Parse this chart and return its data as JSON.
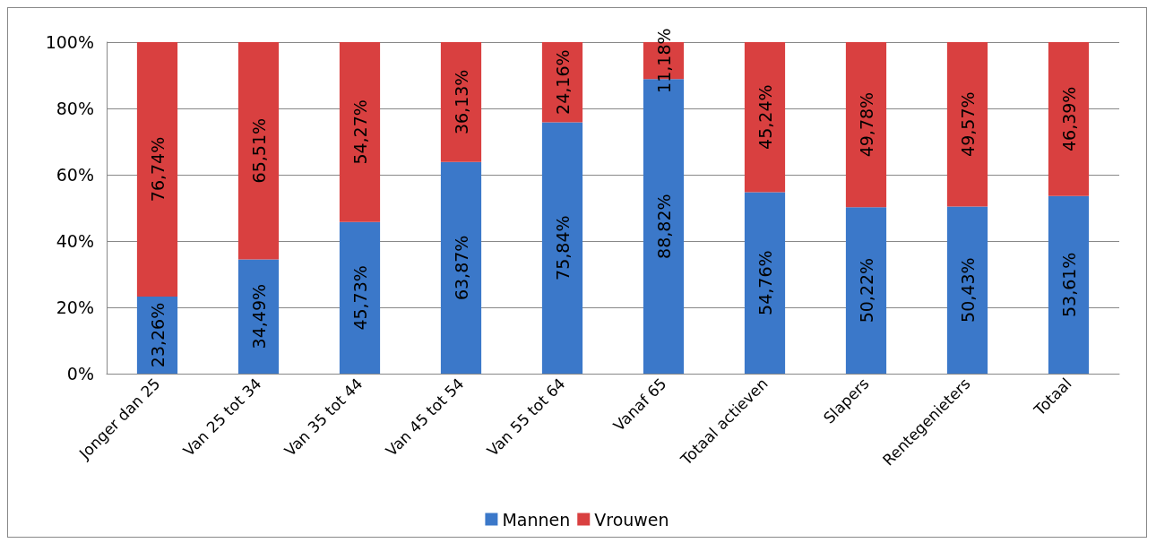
{
  "chart_data": {
    "type": "bar",
    "stacked": true,
    "categories": [
      "Jonger dan 25",
      "Van 25 tot 34",
      "Van 35 tot 44",
      "Van 45 tot 54",
      "Van 55 tot 64",
      "Vanaf 65",
      "Totaal actieven",
      "Slapers",
      "Rentegenieters",
      "Totaal"
    ],
    "series": [
      {
        "name": "Mannen",
        "color": "#3b78c9",
        "values": [
          23.26,
          34.49,
          45.73,
          63.87,
          75.84,
          88.82,
          54.76,
          50.22,
          50.43,
          53.61
        ],
        "value_labels": [
          "23,26%",
          "34,49%",
          "45,73%",
          "63,87%",
          "75,84%",
          "88,82%",
          "54,76%",
          "50,22%",
          "50,43%",
          "53,61%"
        ]
      },
      {
        "name": "Vrouwen",
        "color": "#d94040",
        "values": [
          76.74,
          65.51,
          54.27,
          36.13,
          24.16,
          11.18,
          45.24,
          49.78,
          49.57,
          46.39
        ],
        "value_labels": [
          "76,74%",
          "65,51%",
          "54,27%",
          "36,13%",
          "24,16%",
          "11,18%",
          "45,24%",
          "49,78%",
          "49,57%",
          "46,39%"
        ]
      }
    ],
    "ylim": [
      0,
      100
    ],
    "yticks": [
      {
        "value": 0,
        "label": "0%"
      },
      {
        "value": 20,
        "label": "20%"
      },
      {
        "value": 40,
        "label": "40%"
      },
      {
        "value": 60,
        "label": "60%"
      },
      {
        "value": 80,
        "label": "80%"
      },
      {
        "value": 100,
        "label": "100%"
      }
    ],
    "grid": "y",
    "legend": "bottom"
  }
}
